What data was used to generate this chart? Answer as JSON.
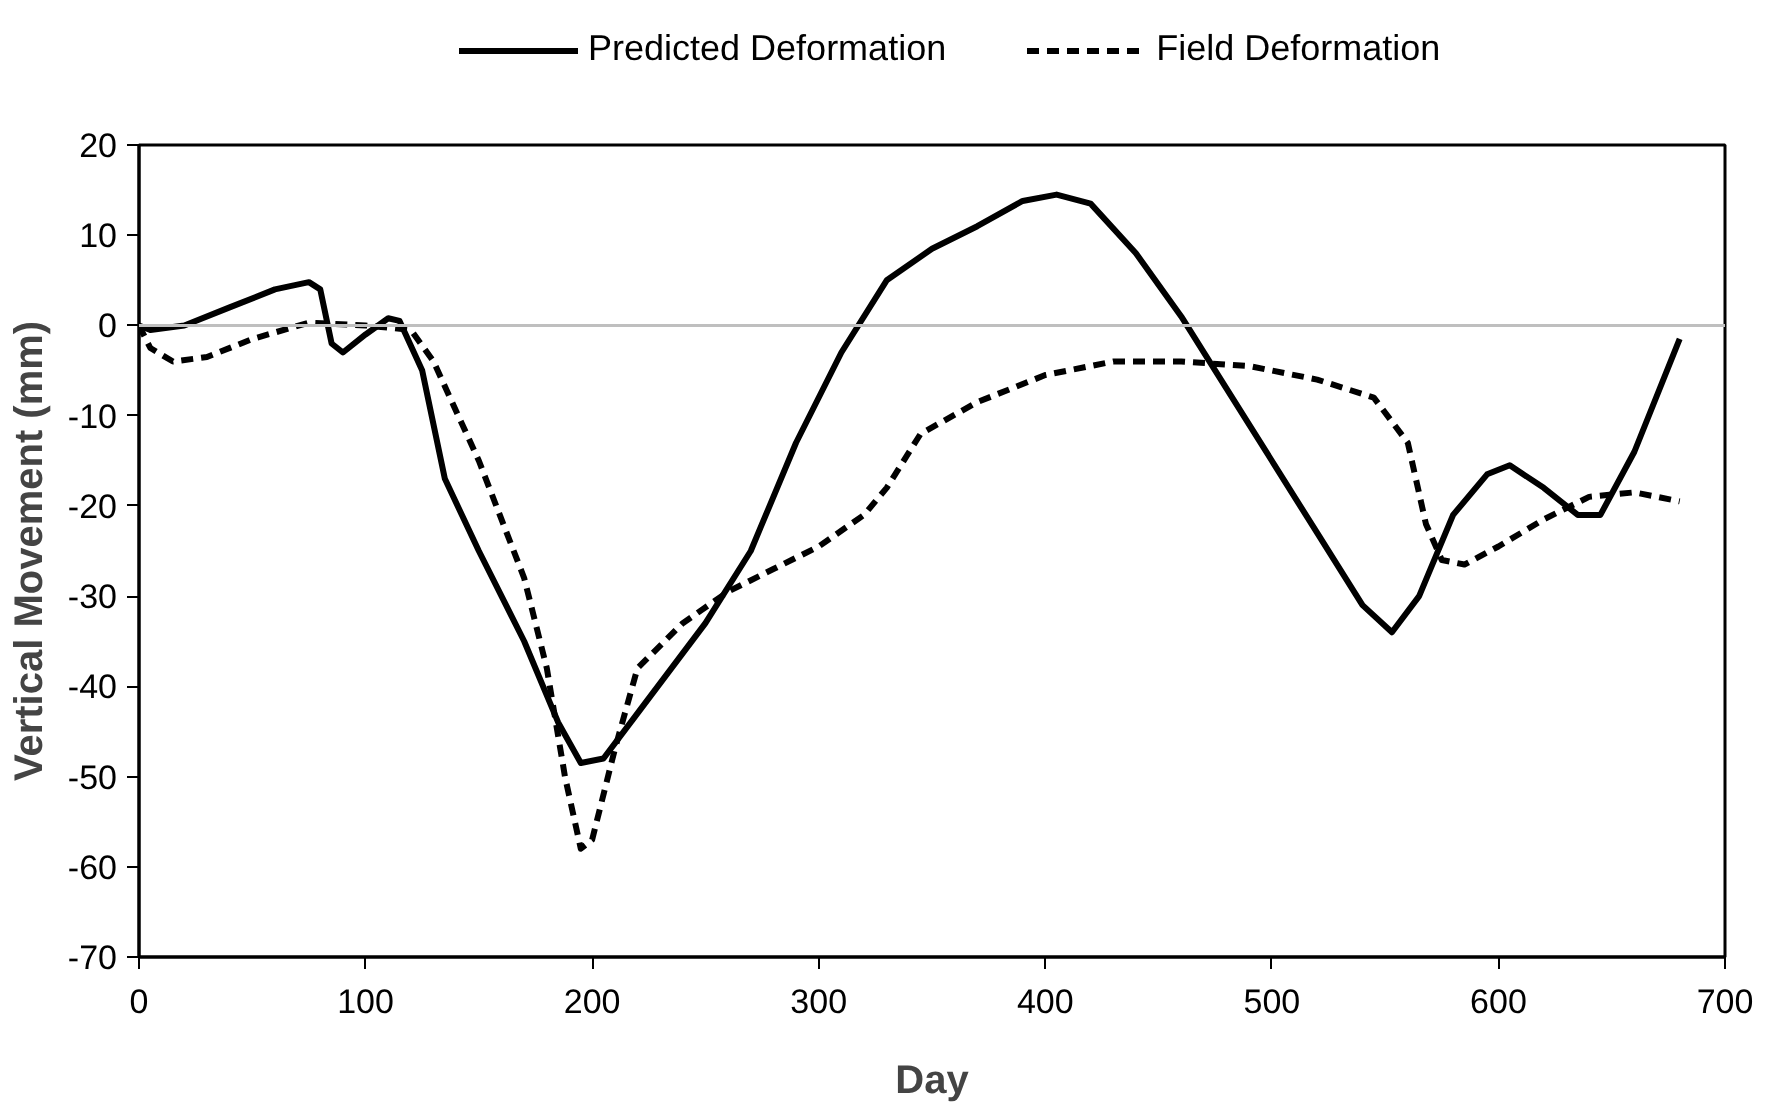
{
  "chart_data": {
    "type": "line",
    "xlabel": "Day",
    "ylabel": "Vertical Movement (mm)",
    "xlim": [
      0,
      700
    ],
    "xticks": [
      0,
      100,
      200,
      300,
      400,
      500,
      600,
      700
    ],
    "ylim": [
      -70,
      20
    ],
    "yticks": [
      -70,
      -60,
      -50,
      -40,
      -30,
      -20,
      -10,
      0,
      10,
      20
    ],
    "grid": false,
    "legend": "top",
    "marker": "none",
    "ref_lines": [
      {
        "axis": "y",
        "value": 0,
        "color": "#bfbfbf"
      }
    ],
    "series": [
      {
        "name": "Predicted Deformation",
        "color": "#000000",
        "line_style": "solid",
        "x": [
          0,
          5,
          20,
          40,
          60,
          75,
          80,
          85,
          90,
          100,
          110,
          115,
          125,
          135,
          150,
          170,
          185,
          195,
          205,
          220,
          250,
          270,
          290,
          310,
          330,
          350,
          370,
          390,
          405,
          420,
          440,
          460,
          480,
          500,
          520,
          540,
          553,
          565,
          580,
          595,
          605,
          620,
          635,
          645,
          660,
          680
        ],
        "values": [
          0,
          -0.5,
          0,
          2,
          4,
          4.8,
          4,
          -2,
          -3,
          -1,
          0.8,
          0.5,
          -5,
          -17,
          -25,
          -35,
          -44,
          -48.5,
          -48,
          -43,
          -33,
          -25,
          -13,
          -3,
          5,
          8.5,
          11,
          13.8,
          14.5,
          13.5,
          8,
          1,
          -7,
          -15,
          -23,
          -31,
          -34,
          -30,
          -21,
          -16.5,
          -15.5,
          -18,
          -21,
          -21,
          -14,
          -1.5
        ]
      },
      {
        "name": "Field Deformation",
        "color": "#000000",
        "line_style": "dashed",
        "x": [
          0,
          5,
          15,
          30,
          50,
          75,
          100,
          120,
          130,
          150,
          170,
          180,
          188,
          195,
          200,
          210,
          220,
          240,
          260,
          280,
          300,
          320,
          330,
          345,
          370,
          400,
          430,
          460,
          490,
          520,
          545,
          560,
          568,
          575,
          585,
          600,
          620,
          640,
          660,
          680
        ],
        "values": [
          0,
          -2.5,
          -4,
          -3.5,
          -1.5,
          0.3,
          0,
          -0.5,
          -4,
          -15,
          -28,
          -38,
          -50,
          -58,
          -57,
          -47,
          -38,
          -33,
          -29.5,
          -27,
          -24.5,
          -21,
          -18,
          -12,
          -8.5,
          -5.5,
          -4,
          -4,
          -4.5,
          -6,
          -8,
          -13,
          -22,
          -26,
          -26.5,
          -24.5,
          -21.5,
          -19,
          -18.5,
          -19.5
        ]
      }
    ]
  }
}
